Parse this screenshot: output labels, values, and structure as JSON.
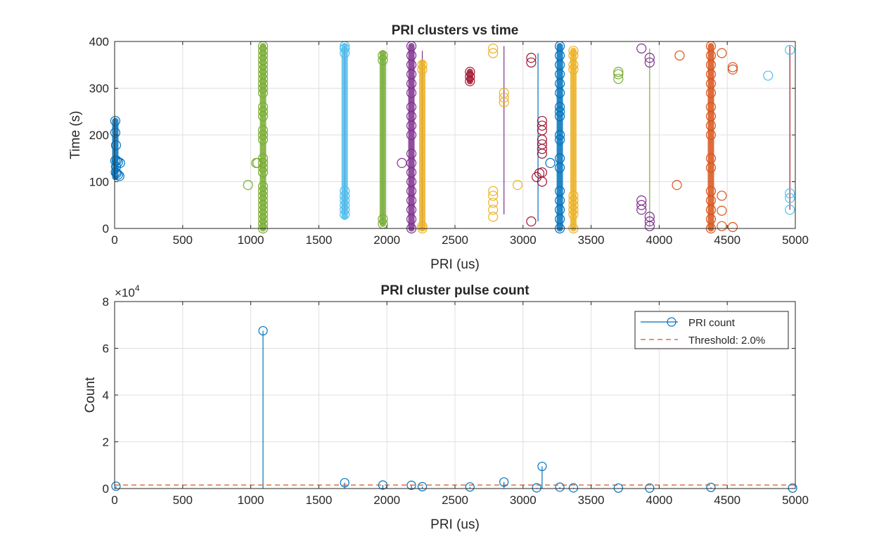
{
  "chart_data": [
    {
      "type": "scatter",
      "title": "PRI clusters vs time",
      "xlabel": "PRI (us)",
      "ylabel": "Time (s)",
      "xlim": [
        0,
        5000
      ],
      "ylim": [
        0,
        400
      ],
      "xticks": [
        0,
        500,
        1000,
        1500,
        2000,
        2500,
        3000,
        3500,
        4000,
        4500,
        5000
      ],
      "yticks": [
        0,
        100,
        200,
        300,
        400
      ],
      "grid": true,
      "series": [
        {
          "color": "#0072BD",
          "center": 5,
          "ymin": 110,
          "ymax": 230,
          "points": [
            [
              5,
              230
            ],
            [
              5,
              205
            ],
            [
              10,
              178
            ],
            [
              5,
              145
            ],
            [
              15,
              145
            ],
            [
              25,
              142
            ],
            [
              40,
              140
            ],
            [
              8,
              120
            ],
            [
              15,
              118
            ],
            [
              25,
              115
            ],
            [
              35,
              112
            ],
            [
              10,
              132
            ]
          ]
        },
        {
          "color": "#77AC30",
          "center": 1090,
          "ymin": 0,
          "ymax": 390,
          "points": [
            [
              1090,
              0
            ],
            [
              1090,
              10
            ],
            [
              1090,
              20
            ],
            [
              1090,
              30
            ],
            [
              1090,
              40
            ],
            [
              1090,
              50
            ],
            [
              1090,
              60
            ],
            [
              1090,
              70
            ],
            [
              1090,
              80
            ],
            [
              1090,
              90
            ],
            [
              1090,
              120
            ],
            [
              1090,
              130
            ],
            [
              1090,
              140
            ],
            [
              1090,
              150
            ],
            [
              1090,
              190
            ],
            [
              1090,
              200
            ],
            [
              1090,
              210
            ],
            [
              1090,
              240
            ],
            [
              1090,
              250
            ],
            [
              1090,
              260
            ],
            [
              1090,
              290
            ],
            [
              1090,
              300
            ],
            [
              1090,
              310
            ],
            [
              1090,
              320
            ],
            [
              1090,
              330
            ],
            [
              1090,
              340
            ],
            [
              1090,
              350
            ],
            [
              1090,
              360
            ],
            [
              1090,
              370
            ],
            [
              1090,
              380
            ],
            [
              1090,
              390
            ],
            [
              1050,
              140
            ],
            [
              1040,
              140
            ],
            [
              980,
              93
            ]
          ]
        },
        {
          "color": "#4DBEEE",
          "center": 1690,
          "ymin": 25,
          "ymax": 390,
          "points": [
            [
              1690,
              30
            ],
            [
              1690,
              40
            ],
            [
              1690,
              50
            ],
            [
              1690,
              60
            ],
            [
              1690,
              70
            ],
            [
              1690,
              80
            ],
            [
              1690,
              375
            ],
            [
              1690,
              385
            ],
            [
              1690,
              390
            ],
            [
              4800,
              327
            ],
            [
              4960,
              382
            ],
            [
              4960,
              75
            ],
            [
              4960,
              65
            ],
            [
              4960,
              40
            ]
          ]
        },
        {
          "color": "#77AC30",
          "center": 1970,
          "ymin": 10,
          "ymax": 375,
          "points": [
            [
              1970,
              10
            ],
            [
              1970,
              20
            ],
            [
              1970,
              360
            ],
            [
              1970,
              370
            ],
            [
              3700,
              320
            ],
            [
              3700,
              330
            ],
            [
              3700,
              335
            ]
          ]
        },
        {
          "color": "#7E2F8E",
          "center": 2180,
          "ymin": 0,
          "ymax": 390,
          "points": [
            [
              2180,
              0
            ],
            [
              2180,
              20
            ],
            [
              2180,
              40
            ],
            [
              2180,
              60
            ],
            [
              2180,
              80
            ],
            [
              2180,
              100
            ],
            [
              2180,
              120
            ],
            [
              2180,
              140
            ],
            [
              2180,
              160
            ],
            [
              2180,
              200
            ],
            [
              2180,
              220
            ],
            [
              2180,
              240
            ],
            [
              2180,
              260
            ],
            [
              2180,
              290
            ],
            [
              2180,
              310
            ],
            [
              2180,
              330
            ],
            [
              2180,
              350
            ],
            [
              2180,
              370
            ],
            [
              2180,
              390
            ],
            [
              2110,
              140
            ],
            [
              3870,
              385
            ],
            [
              3870,
              60
            ],
            [
              3870,
              50
            ],
            [
              3870,
              40
            ],
            [
              3930,
              365
            ],
            [
              3930,
              355
            ],
            [
              3930,
              25
            ],
            [
              3930,
              15
            ],
            [
              3930,
              5
            ]
          ]
        },
        {
          "color": "#EDB120",
          "center": 2260,
          "ymin": 0,
          "ymax": 355,
          "points": [
            [
              2260,
              0
            ],
            [
              2260,
              5
            ],
            [
              2260,
              340
            ],
            [
              2260,
              350
            ],
            [
              2780,
              385
            ],
            [
              2780,
              375
            ],
            [
              2780,
              80
            ],
            [
              2780,
              70
            ],
            [
              2780,
              55
            ],
            [
              2780,
              40
            ],
            [
              2780,
              25
            ],
            [
              2860,
              270
            ],
            [
              2860,
              280
            ],
            [
              2860,
              290
            ],
            [
              2960,
              93
            ]
          ]
        },
        {
          "color": "#A2142F",
          "center": 2610,
          "ymin": 315,
          "ymax": 335,
          "points": [
            [
              2610,
              315
            ],
            [
              2610,
              325
            ],
            [
              2610,
              335
            ],
            [
              3060,
              365
            ],
            [
              3060,
              355
            ],
            [
              3060,
              15
            ],
            [
              3100,
              110
            ],
            [
              3120,
              118
            ],
            [
              3140,
              100
            ],
            [
              3140,
              120
            ],
            [
              3140,
              160
            ],
            [
              3140,
              170
            ],
            [
              3140,
              180
            ],
            [
              3140,
              190
            ],
            [
              3140,
              210
            ],
            [
              3140,
              220
            ],
            [
              3140,
              230
            ]
          ]
        },
        {
          "color": "#0072BD",
          "center": 3270,
          "ymin": 0,
          "ymax": 390,
          "points": [
            [
              3270,
              0
            ],
            [
              3270,
              20
            ],
            [
              3270,
              40
            ],
            [
              3270,
              60
            ],
            [
              3270,
              80
            ],
            [
              3270,
              130
            ],
            [
              3270,
              150
            ],
            [
              3270,
              190
            ],
            [
              3270,
              200
            ],
            [
              3270,
              240
            ],
            [
              3270,
              250
            ],
            [
              3270,
              260
            ],
            [
              3270,
              290
            ],
            [
              3270,
              310
            ],
            [
              3270,
              330
            ],
            [
              3270,
              350
            ],
            [
              3270,
              370
            ],
            [
              3270,
              390
            ],
            [
              3200,
              140
            ]
          ]
        },
        {
          "color": "#EDB120",
          "center": 3370,
          "ymin": 0,
          "ymax": 380,
          "points": [
            [
              3370,
              0
            ],
            [
              3370,
              30
            ],
            [
              3370,
              40
            ],
            [
              3370,
              50
            ],
            [
              3370,
              60
            ],
            [
              3370,
              70
            ],
            [
              3370,
              340
            ],
            [
              3370,
              350
            ],
            [
              3370,
              370
            ],
            [
              3370,
              380
            ]
          ]
        },
        {
          "color": "#D95319",
          "center": 4380,
          "ymin": 0,
          "ymax": 390,
          "points": [
            [
              4380,
              0
            ],
            [
              4380,
              20
            ],
            [
              4380,
              40
            ],
            [
              4380,
              60
            ],
            [
              4380,
              80
            ],
            [
              4380,
              130
            ],
            [
              4380,
              150
            ],
            [
              4380,
              200
            ],
            [
              4380,
              220
            ],
            [
              4380,
              240
            ],
            [
              4380,
              260
            ],
            [
              4380,
              290
            ],
            [
              4380,
              310
            ],
            [
              4380,
              330
            ],
            [
              4380,
              350
            ],
            [
              4380,
              370
            ],
            [
              4380,
              390
            ],
            [
              4460,
              375
            ],
            [
              4460,
              70
            ],
            [
              4460,
              38
            ],
            [
              4460,
              5
            ],
            [
              4540,
              345
            ],
            [
              4540,
              340
            ],
            [
              4540,
              3
            ],
            [
              4150,
              370
            ],
            [
              4130,
              93
            ]
          ]
        }
      ],
      "stems": [
        {
          "color": "#A2142F",
          "x": 1690,
          "y0": 30,
          "y1": 390
        },
        {
          "color": "#4DBEEE",
          "x": 1970,
          "y0": 10,
          "y1": 375
        },
        {
          "color": "#7E2F8E",
          "x": 2260,
          "y0": 0,
          "y1": 380
        },
        {
          "color": "#7E2F8E",
          "x": 2860,
          "y0": 30,
          "y1": 390
        },
        {
          "color": "#0072BD",
          "x": 3110,
          "y0": 15,
          "y1": 375
        },
        {
          "color": "#EDB120",
          "x": 3370,
          "y0": 0,
          "y1": 380
        },
        {
          "color": "#77AC30",
          "x": 3930,
          "y0": 5,
          "y1": 385
        },
        {
          "color": "#A2142F",
          "x": 4960,
          "y0": 40,
          "y1": 390
        }
      ]
    },
    {
      "type": "stem",
      "title": "PRI cluster pulse count",
      "xlabel": "PRI (us)",
      "ylabel": "Count",
      "xlim": [
        0,
        5000
      ],
      "ylim": [
        0,
        8
      ],
      "yscale_label": "×10",
      "yscale_exponent": "4",
      "xticks": [
        0,
        500,
        1000,
        1500,
        2000,
        2500,
        3000,
        3500,
        4000,
        4500,
        5000
      ],
      "yticks": [
        0,
        2,
        4,
        6,
        8
      ],
      "grid": true,
      "legend_position": "top-right",
      "series": [
        {
          "name": "PRI count",
          "color": "#0072BD",
          "x": [
            10,
            1090,
            1690,
            1970,
            2180,
            2260,
            2610,
            2860,
            3100,
            3140,
            3270,
            3370,
            3700,
            3930,
            4380,
            4980
          ],
          "values": [
            0.1,
            6.75,
            0.25,
            0.15,
            0.14,
            0.08,
            0.07,
            0.28,
            0.03,
            0.95,
            0.06,
            0.03,
            0.02,
            0.02,
            0.05,
            0.02
          ]
        },
        {
          "name": "Threshold: 2.0%",
          "color": "#D95319",
          "style": "dashed",
          "value": 0.15
        }
      ]
    }
  ]
}
